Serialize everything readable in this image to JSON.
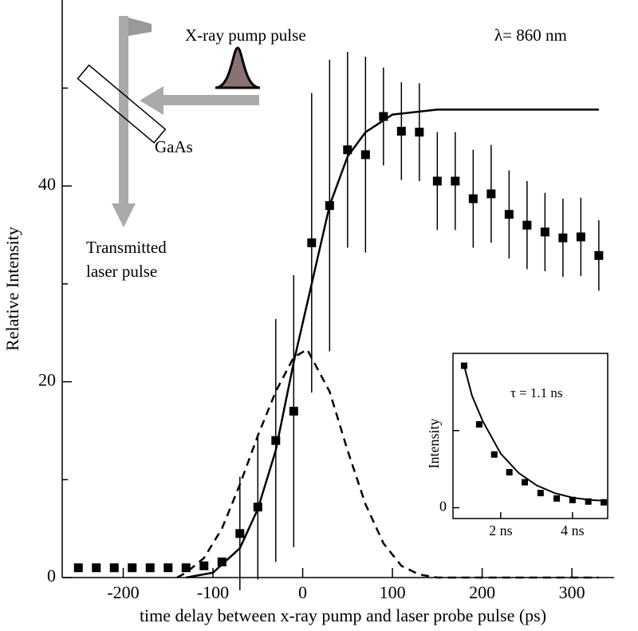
{
  "chart_data": [
    {
      "type": "scatter",
      "xlabel": "time delay between x-ray pump and laser probe pulse (ps)",
      "ylabel": "Relative Intensity",
      "xlim": [
        -268,
        347
      ],
      "ylim": [
        0,
        59
      ],
      "xticks": [
        -200,
        -100,
        0,
        100,
        200,
        300
      ],
      "yticks": [
        0,
        20,
        40
      ],
      "yminor": [
        10,
        30,
        50
      ],
      "annotations": [
        "X-ray pump pulse",
        "λ= 860 nm",
        "GaAs",
        "Transmitted",
        "laser pulse"
      ],
      "series": [
        {
          "style": "marker",
          "color": "#000000",
          "x": [
            -250,
            -230,
            -210,
            -190,
            -170,
            -150,
            -130,
            -110,
            -90,
            -70,
            -50,
            -30,
            -10,
            10,
            30,
            50,
            70,
            90,
            110,
            130,
            150,
            170,
            190,
            210,
            230,
            250,
            270,
            290,
            310,
            330
          ],
          "values": [
            1.0,
            1.0,
            1.0,
            1.0,
            1.0,
            1.0,
            1.0,
            1.2,
            1.6,
            4.5,
            7.2,
            14,
            17,
            34.2,
            38,
            43.7,
            43.2,
            47.1,
            45.6,
            45.5,
            40.5,
            40.5,
            38.7,
            39.2,
            37.1,
            36,
            35.3,
            34.7,
            34.8,
            32.9
          ],
          "errors": [
            0,
            0,
            0,
            0,
            0,
            0,
            0,
            0,
            0,
            5.8,
            7.4,
            12.4,
            13.9,
            15.3,
            14.9,
            10,
            10,
            5,
            5,
            5,
            5,
            5,
            5,
            5,
            4.5,
            4.5,
            4,
            4,
            4,
            3.6
          ]
        },
        {
          "style": "solid",
          "color": "#000000",
          "x": [
            -130,
            -100,
            -70,
            -50,
            -30,
            -10,
            10,
            30,
            50,
            70,
            100,
            150,
            330
          ],
          "values": [
            0,
            0.5,
            3,
            7,
            13,
            22,
            30,
            38,
            43,
            45.5,
            47.3,
            47.8,
            47.8
          ]
        },
        {
          "style": "dashed",
          "color": "#000000",
          "x": [
            -140,
            -130,
            -110,
            -90,
            -70,
            -50,
            -30,
            -10,
            5,
            30,
            50,
            70,
            90,
            110,
            130,
            150,
            330
          ],
          "values": [
            0,
            0.5,
            2,
            5,
            9.5,
            14.5,
            19,
            22.5,
            23.3,
            19,
            13,
            7.5,
            3.5,
            1.2,
            0.3,
            0,
            0
          ]
        }
      ]
    },
    {
      "type": "scatter",
      "ylabel": "Intensity",
      "xlim": [
        0.67,
        4.98
      ],
      "ylim": [
        -0.14,
        2
      ],
      "xticks": [
        {
          "value": 2,
          "label": "2 ns"
        },
        {
          "value": 4,
          "label": "4 ns"
        }
      ],
      "yticks": [
        0
      ],
      "yminor": [
        1
      ],
      "annotations": [
        "τ = 1.1 ns"
      ],
      "series": [
        {
          "style": "marker",
          "color": "#000000",
          "x": [
            0.98,
            1.4,
            1.82,
            2.24,
            2.67,
            3.11,
            3.56,
            4.0,
            4.44,
            4.87
          ],
          "values": [
            1.84,
            1.08,
            0.69,
            0.46,
            0.33,
            0.19,
            0.12,
            0.1,
            0.08,
            0.07
          ]
        },
        {
          "style": "solid",
          "color": "#000000",
          "x": [
            0.98,
            1.2,
            1.5,
            2,
            2.5,
            3,
            3.5,
            4,
            4.5,
            4.9
          ],
          "values": [
            1.84,
            1.45,
            1.12,
            0.7,
            0.45,
            0.29,
            0.19,
            0.13,
            0.1,
            0.09
          ]
        }
      ]
    }
  ]
}
